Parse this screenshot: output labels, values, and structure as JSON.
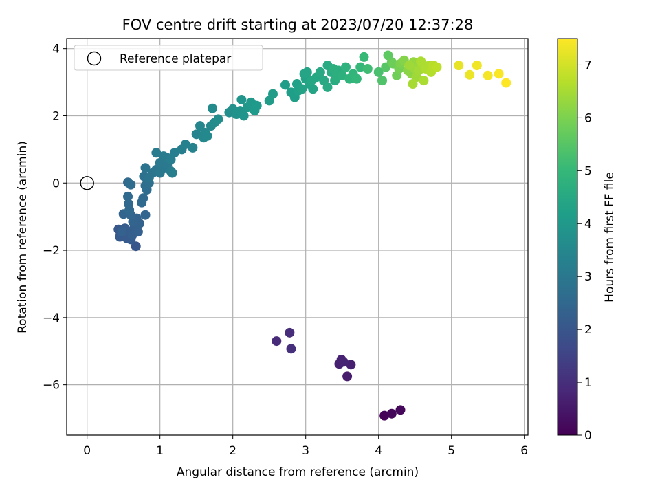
{
  "chart_data": {
    "type": "scatter",
    "title": "FOV centre drift starting at 2023/07/20 12:37:28",
    "xlabel": "Angular distance from reference (arcmin)",
    "ylabel": "Rotation from reference (arcmin)",
    "xlim": [
      -0.28,
      6.05
    ],
    "ylim": [
      -7.5,
      4.3
    ],
    "xticks": [
      0,
      1,
      2,
      3,
      4,
      5,
      6
    ],
    "yticks": [
      -6,
      -4,
      -2,
      0,
      2,
      4
    ],
    "grid": true,
    "legend": {
      "placement": "top-left",
      "entries": [
        "Reference platepar"
      ]
    },
    "reference_point": {
      "x": 0,
      "y": 0,
      "label": "Reference platepar",
      "marker": "open-circle"
    },
    "colorbar": {
      "label": "Hours from first FF file",
      "range": [
        0,
        7.5
      ],
      "ticks": [
        0,
        1,
        2,
        3,
        4,
        5,
        6,
        7
      ],
      "colormap": "viridis",
      "stops": [
        "#440154",
        "#482878",
        "#3e4a89",
        "#31688e",
        "#26828e",
        "#1f9e89",
        "#35b779",
        "#6ece58",
        "#b5de2b",
        "#fde725"
      ]
    },
    "points": [
      [
        4.08,
        -6.92,
        0.05
      ],
      [
        4.18,
        -6.86,
        0.1
      ],
      [
        4.3,
        -6.75,
        0.15
      ],
      [
        3.57,
        -5.75,
        0.6
      ],
      [
        3.62,
        -5.4,
        0.65
      ],
      [
        3.49,
        -5.25,
        0.7
      ],
      [
        3.46,
        -5.38,
        0.68
      ],
      [
        3.52,
        -5.32,
        0.72
      ],
      [
        2.6,
        -4.7,
        0.9
      ],
      [
        2.78,
        -4.45,
        0.95
      ],
      [
        2.8,
        -4.93,
        1.0
      ],
      [
        0.67,
        -1.88,
        2.0
      ],
      [
        0.43,
        -1.38,
        2.05
      ],
      [
        0.45,
        -1.6,
        2.1
      ],
      [
        0.5,
        -1.5,
        2.1
      ],
      [
        0.55,
        -1.65,
        2.15
      ],
      [
        0.6,
        -1.68,
        2.15
      ],
      [
        0.52,
        -1.35,
        2.2
      ],
      [
        0.58,
        -1.45,
        2.2
      ],
      [
        0.62,
        -1.55,
        2.25
      ],
      [
        0.65,
        -1.3,
        2.25
      ],
      [
        0.7,
        -1.45,
        2.3
      ],
      [
        0.48,
        -1.45,
        2.3
      ],
      [
        0.72,
        -1.2,
        2.35
      ],
      [
        0.68,
        -1.05,
        2.35
      ],
      [
        0.63,
        -1.15,
        2.4
      ],
      [
        0.5,
        -0.92,
        2.4
      ],
      [
        0.6,
        -0.95,
        2.45
      ],
      [
        0.8,
        -0.95,
        2.45
      ],
      [
        0.58,
        -0.8,
        2.5
      ],
      [
        0.57,
        -0.62,
        2.5
      ],
      [
        0.56,
        -0.4,
        2.55
      ],
      [
        0.75,
        -0.58,
        2.55
      ],
      [
        0.77,
        -0.45,
        2.6
      ],
      [
        0.56,
        0.02,
        2.6
      ],
      [
        0.6,
        -0.05,
        2.65
      ],
      [
        0.82,
        -0.2,
        2.65
      ],
      [
        0.8,
        -0.08,
        2.7
      ],
      [
        0.85,
        0.0,
        2.75
      ],
      [
        0.78,
        0.2,
        2.8
      ],
      [
        0.85,
        0.15,
        2.85
      ],
      [
        0.8,
        0.45,
        2.9
      ],
      [
        0.9,
        0.3,
        2.9
      ],
      [
        0.95,
        0.4,
        2.95
      ],
      [
        1.0,
        0.3,
        3.0
      ],
      [
        1.05,
        0.45,
        3.0
      ],
      [
        1.0,
        0.6,
        3.05
      ],
      [
        1.1,
        0.55,
        3.05
      ],
      [
        1.15,
        0.35,
        3.1
      ],
      [
        1.1,
        0.75,
        3.1
      ],
      [
        1.05,
        0.8,
        3.15
      ],
      [
        0.95,
        0.9,
        3.15
      ],
      [
        1.15,
        0.7,
        3.2
      ],
      [
        1.2,
        0.9,
        3.2
      ],
      [
        1.17,
        0.3,
        3.25
      ],
      [
        1.3,
        1.0,
        3.25
      ],
      [
        1.35,
        1.15,
        3.3
      ],
      [
        1.45,
        1.05,
        3.35
      ],
      [
        1.5,
        1.45,
        3.4
      ],
      [
        1.55,
        1.7,
        3.45
      ],
      [
        1.6,
        1.35,
        3.5
      ],
      [
        1.62,
        1.5,
        3.5
      ],
      [
        1.65,
        1.4,
        3.55
      ],
      [
        1.7,
        1.7,
        3.55
      ],
      [
        1.75,
        1.8,
        3.6
      ],
      [
        1.72,
        2.22,
        3.6
      ],
      [
        1.8,
        1.9,
        3.65
      ],
      [
        1.95,
        2.1,
        3.7
      ],
      [
        2.0,
        2.2,
        3.75
      ],
      [
        2.05,
        2.05,
        3.8
      ],
      [
        2.1,
        2.15,
        3.85
      ],
      [
        2.12,
        2.48,
        3.9
      ],
      [
        2.15,
        2.0,
        3.9
      ],
      [
        2.2,
        2.25,
        3.95
      ],
      [
        2.25,
        2.4,
        4.0
      ],
      [
        2.28,
        2.3,
        4.0
      ],
      [
        2.3,
        2.15,
        4.05
      ],
      [
        2.33,
        2.3,
        4.05
      ],
      [
        2.5,
        2.45,
        4.1
      ],
      [
        2.55,
        2.65,
        4.1
      ],
      [
        2.72,
        2.92,
        4.15
      ],
      [
        2.8,
        2.7,
        4.2
      ],
      [
        2.85,
        2.55,
        4.2
      ],
      [
        2.9,
        2.75,
        4.25
      ],
      [
        2.88,
        2.95,
        4.25
      ],
      [
        2.95,
        2.8,
        4.3
      ],
      [
        3.0,
        3.1,
        4.3
      ],
      [
        3.05,
        2.95,
        4.35
      ],
      [
        3.1,
        2.8,
        4.35
      ],
      [
        2.98,
        3.25,
        4.4
      ],
      [
        3.02,
        3.3,
        4.4
      ],
      [
        3.08,
        3.05,
        4.45
      ],
      [
        3.15,
        3.15,
        4.45
      ],
      [
        3.2,
        3.3,
        4.5
      ],
      [
        3.25,
        3.05,
        4.5
      ],
      [
        3.3,
        2.85,
        4.55
      ],
      [
        3.3,
        3.5,
        4.55
      ],
      [
        3.35,
        3.3,
        4.6
      ],
      [
        3.4,
        3.05,
        4.6
      ],
      [
        3.45,
        3.35,
        4.65
      ],
      [
        3.38,
        3.4,
        4.7
      ],
      [
        3.42,
        3.15,
        4.7
      ],
      [
        3.5,
        3.2,
        4.75
      ],
      [
        3.55,
        3.45,
        4.8
      ],
      [
        3.6,
        3.1,
        4.85
      ],
      [
        3.65,
        3.25,
        4.9
      ],
      [
        3.7,
        3.1,
        4.95
      ],
      [
        3.75,
        3.45,
        5.0
      ],
      [
        3.8,
        3.75,
        5.05
      ],
      [
        3.85,
        3.4,
        5.15
      ],
      [
        4.0,
        3.3,
        5.3
      ],
      [
        4.05,
        3.05,
        5.4
      ],
      [
        4.1,
        3.45,
        5.5
      ],
      [
        4.13,
        3.8,
        5.6
      ],
      [
        4.18,
        3.6,
        5.7
      ],
      [
        4.2,
        3.55,
        5.8
      ],
      [
        4.25,
        3.2,
        5.85
      ],
      [
        4.28,
        3.4,
        5.9
      ],
      [
        4.3,
        3.55,
        6.0
      ],
      [
        4.35,
        3.65,
        6.1
      ],
      [
        4.4,
        3.35,
        6.15
      ],
      [
        4.45,
        3.25,
        6.2
      ],
      [
        4.48,
        3.6,
        6.3
      ],
      [
        4.5,
        3.4,
        6.35
      ],
      [
        4.52,
        3.15,
        6.4
      ],
      [
        4.55,
        3.35,
        6.45
      ],
      [
        4.6,
        3.55,
        6.5
      ],
      [
        4.62,
        3.05,
        6.55
      ],
      [
        4.65,
        3.4,
        6.6
      ],
      [
        4.7,
        3.5,
        6.6
      ],
      [
        4.72,
        3.3,
        6.65
      ],
      [
        4.75,
        3.5,
        6.7
      ],
      [
        4.8,
        3.45,
        6.75
      ],
      [
        4.47,
        2.95,
        6.5
      ],
      [
        4.58,
        3.62,
        6.55
      ],
      [
        4.42,
        3.5,
        6.4
      ],
      [
        5.1,
        3.5,
        7.25
      ],
      [
        5.25,
        3.22,
        7.3
      ],
      [
        5.35,
        3.5,
        7.35
      ],
      [
        5.5,
        3.2,
        7.4
      ],
      [
        5.65,
        3.25,
        7.45
      ],
      [
        5.75,
        2.98,
        7.5
      ]
    ]
  }
}
